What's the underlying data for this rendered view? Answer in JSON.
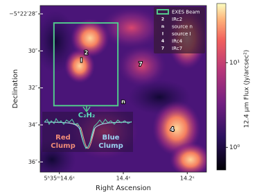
{
  "chart_data": {
    "type": "image",
    "x_label": "Right Ascension",
    "y_label": "Declination",
    "xlim": [
      14.66,
      14.14
    ],
    "xticks": [
      {
        "value": 14.6,
        "label": "5ʰ35ᵐ14.6ˢ"
      },
      {
        "value": 14.4,
        "label": "14.4ˢ"
      },
      {
        "value": 14.2,
        "label": "14.2ˢ"
      }
    ],
    "ylim": [
      36.55,
      27.55
    ],
    "yticks": [
      {
        "value": 28,
        "label": "−5°22′28″"
      },
      {
        "value": 30,
        "label": "30″"
      },
      {
        "value": 32,
        "label": "32″"
      },
      {
        "value": 34,
        "label": "34″"
      },
      {
        "value": 36,
        "label": "36″"
      }
    ],
    "colorbar": {
      "label": "12.4 μm Flux (Jy/arcsec²)",
      "log": true,
      "lim": [
        0.54,
        50
      ],
      "ticks": [
        {
          "value": 10,
          "label": "10¹"
        },
        {
          "value": 1,
          "label": "10⁰"
        }
      ]
    },
    "beam": {
      "name": "EXES Beam",
      "color": "#52c98c",
      "ra": [
        14.617,
        14.417
      ],
      "dec": [
        28.49,
        32.96
      ]
    },
    "sources": [
      {
        "marker": "2",
        "name": "IRc2",
        "ra": 14.516,
        "dec": 30.1
      },
      {
        "marker": "n",
        "name": "source n",
        "ra": 14.4,
        "dec": 32.74
      },
      {
        "marker": "I",
        "name": "source I",
        "ra": 14.531,
        "dec": 30.52
      },
      {
        "marker": "4",
        "name": "IRc4",
        "ra": 14.247,
        "dec": 34.24
      },
      {
        "marker": "7",
        "name": "IRc7",
        "ra": 14.346,
        "dec": 30.71
      }
    ],
    "inset": {
      "molecule": "C₂H₂",
      "red_label": "Red\nClump",
      "blue_label": "Blue\nClump"
    }
  }
}
